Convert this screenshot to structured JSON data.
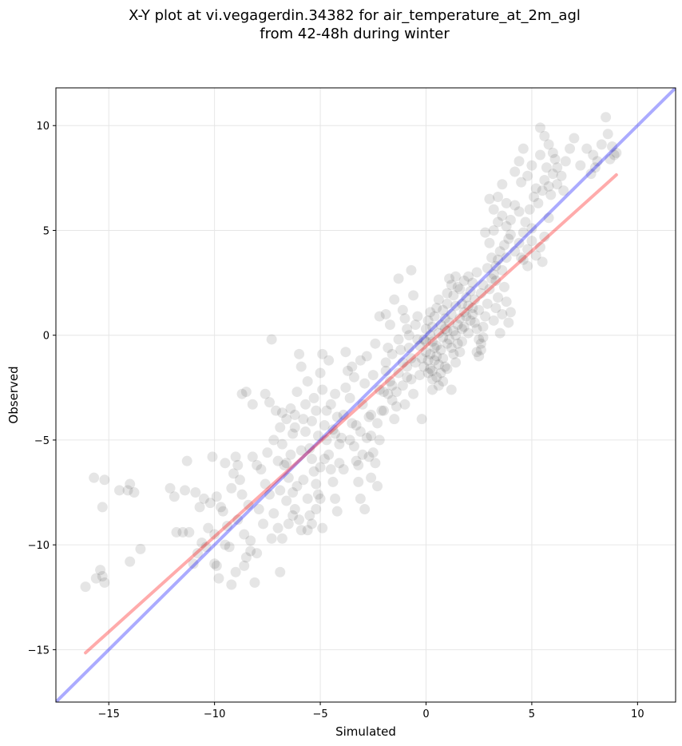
{
  "chart_data": {
    "type": "scatter",
    "title_line1": "X-Y plot at vi.vegagerdin.34382 for air_temperature_at_2m_agl",
    "title_line2": "from 42-48h during winter",
    "xlabel": "Simulated",
    "ylabel": "Observed",
    "xlim": [
      -17.5,
      11.8
    ],
    "ylim": [
      -17.5,
      11.8
    ],
    "xticks": [
      -15,
      -10,
      -5,
      0,
      5,
      10
    ],
    "yticks": [
      -15,
      -10,
      -5,
      0,
      5,
      10
    ],
    "xtick_labels": [
      "−15",
      "−10",
      "−5",
      "0",
      "5",
      "10"
    ],
    "ytick_labels": [
      "−15",
      "−10",
      "−5",
      "0",
      "5",
      "10"
    ],
    "grid": true,
    "colors": {
      "points": "#000000",
      "identity_line": "#0000ff",
      "fit_line": "#ff0000",
      "grid": "#e6e6e6"
    },
    "identity_line": {
      "x": [
        -17.5,
        11.8
      ],
      "y": [
        -17.5,
        11.8
      ]
    },
    "regression_line": {
      "x": [
        -16.1,
        9.0
      ],
      "y": [
        -15.15,
        7.65
      ]
    },
    "points": [
      [
        -16.1,
        -12.0
      ],
      [
        -15.6,
        -11.6
      ],
      [
        -15.4,
        -11.2
      ],
      [
        -15.3,
        -11.5
      ],
      [
        -15.2,
        -11.8
      ],
      [
        -15.7,
        -6.8
      ],
      [
        -15.2,
        -6.9
      ],
      [
        -15.3,
        -8.2
      ],
      [
        -14.5,
        -7.4
      ],
      [
        -14.1,
        -7.4
      ],
      [
        -14.0,
        -7.1
      ],
      [
        -13.8,
        -7.5
      ],
      [
        -14.0,
        -10.8
      ],
      [
        -13.5,
        -10.2
      ],
      [
        -12.1,
        -7.3
      ],
      [
        -11.9,
        -7.7
      ],
      [
        -11.8,
        -9.4
      ],
      [
        -11.5,
        -9.4
      ],
      [
        -11.4,
        -7.4
      ],
      [
        -11.3,
        -6.0
      ],
      [
        -11.2,
        -9.4
      ],
      [
        -11.0,
        -10.9
      ],
      [
        -10.8,
        -10.4
      ],
      [
        -10.6,
        -9.9
      ],
      [
        -10.3,
        -9.2
      ],
      [
        -10.1,
        -5.8
      ],
      [
        -10.0,
        -9.5
      ],
      [
        -9.9,
        -7.7
      ],
      [
        -9.7,
        -8.2
      ],
      [
        -9.5,
        -10.0
      ],
      [
        -9.3,
        -10.1
      ],
      [
        -9.2,
        -11.9
      ],
      [
        -9.0,
        -11.3
      ],
      [
        -9.8,
        -11.6
      ],
      [
        -10.0,
        -10.9
      ],
      [
        -10.5,
        -7.8
      ],
      [
        -10.7,
        -8.2
      ],
      [
        -10.9,
        -7.5
      ],
      [
        -9.0,
        -5.8
      ],
      [
        -8.9,
        -6.2
      ],
      [
        -8.7,
        -7.6
      ],
      [
        -8.6,
        -9.5
      ],
      [
        -8.5,
        -10.6
      ],
      [
        -8.3,
        -9.8
      ],
      [
        -8.1,
        -11.8
      ],
      [
        -8.0,
        -10.4
      ],
      [
        -8.7,
        -2.8
      ],
      [
        -8.5,
        -2.7
      ],
      [
        -8.2,
        -3.3
      ],
      [
        -8.0,
        -6.2
      ],
      [
        -8.2,
        -5.8
      ],
      [
        -7.8,
        -6.4
      ],
      [
        -7.6,
        -7.1
      ],
      [
        -7.4,
        -7.6
      ],
      [
        -7.2,
        -8.5
      ],
      [
        -7.0,
        -9.2
      ],
      [
        -6.9,
        -11.3
      ],
      [
        -6.8,
        -9.7
      ],
      [
        -6.5,
        -9.0
      ],
      [
        -7.6,
        -2.8
      ],
      [
        -7.4,
        -3.2
      ],
      [
        -7.3,
        -0.2
      ],
      [
        -7.1,
        -3.6
      ],
      [
        -6.9,
        -4.4
      ],
      [
        -6.8,
        -5.2
      ],
      [
        -6.6,
        -6.1
      ],
      [
        -6.5,
        -6.8
      ],
      [
        -6.3,
        -7.5
      ],
      [
        -6.2,
        -8.3
      ],
      [
        -6.0,
        -8.8
      ],
      [
        -5.9,
        -9.3
      ],
      [
        -5.6,
        -9.3
      ],
      [
        -5.4,
        -9.0
      ],
      [
        -5.2,
        -8.3
      ],
      [
        -5.0,
        -7.8
      ],
      [
        -4.9,
        -9.2
      ],
      [
        -6.4,
        -3.5
      ],
      [
        -6.2,
        -3.8
      ],
      [
        -6.1,
        -2.7
      ],
      [
        -6.0,
        -0.9
      ],
      [
        -5.9,
        -1.5
      ],
      [
        -5.8,
        -4.0
      ],
      [
        -5.7,
        -4.6
      ],
      [
        -5.5,
        -5.4
      ],
      [
        -5.4,
        -5.9
      ],
      [
        -5.3,
        -6.5
      ],
      [
        -5.2,
        -7.1
      ],
      [
        -5.1,
        -7.6
      ],
      [
        -5.6,
        -2.2
      ],
      [
        -5.3,
        -3.0
      ],
      [
        -5.2,
        -3.6
      ],
      [
        -5.0,
        -1.8
      ],
      [
        -4.9,
        -2.6
      ],
      [
        -4.8,
        -4.3
      ],
      [
        -4.7,
        -5.0
      ],
      [
        -4.6,
        -5.7
      ],
      [
        -4.5,
        -6.4
      ],
      [
        -4.4,
        -7.0
      ],
      [
        -4.3,
        -7.8
      ],
      [
        -4.2,
        -8.4
      ],
      [
        -4.1,
        -6.1
      ],
      [
        -4.0,
        -4.9
      ],
      [
        -3.9,
        -3.8
      ],
      [
        -3.8,
        -2.5
      ],
      [
        -3.7,
        -1.7
      ],
      [
        -3.6,
        -3.0
      ],
      [
        -3.5,
        -4.2
      ],
      [
        -3.4,
        -5.3
      ],
      [
        -3.3,
        -6.0
      ],
      [
        -3.2,
        -7.0
      ],
      [
        -3.1,
        -4.6
      ],
      [
        -3.0,
        -3.3
      ],
      [
        -2.9,
        -2.3
      ],
      [
        -2.8,
        -1.0
      ],
      [
        -2.7,
        -3.9
      ],
      [
        -2.6,
        -4.8
      ],
      [
        -2.5,
        -5.6
      ],
      [
        -2.4,
        -6.1
      ],
      [
        -2.3,
        -7.2
      ],
      [
        -2.2,
        -5.0
      ],
      [
        -2.1,
        -3.6
      ],
      [
        -2.0,
        -2.7
      ],
      [
        -1.9,
        -1.3
      ],
      [
        -1.8,
        -0.6
      ],
      [
        -3.2,
        -6.2
      ],
      [
        -3.1,
        -7.8
      ],
      [
        -2.9,
        -8.3
      ],
      [
        -2.7,
        -5.8
      ],
      [
        -2.6,
        -6.8
      ],
      [
        -4.5,
        -3.3
      ],
      [
        -4.3,
        -2.8
      ],
      [
        -4.2,
        -3.9
      ],
      [
        -1.7,
        -2.2
      ],
      [
        -1.6,
        -3.1
      ],
      [
        -1.5,
        -4.0
      ],
      [
        -1.4,
        -2.7
      ],
      [
        -1.3,
        -1.8
      ],
      [
        -1.2,
        -0.7
      ],
      [
        -1.1,
        -2.4
      ],
      [
        -1.0,
        -3.3
      ],
      [
        -0.9,
        -1.5
      ],
      [
        -0.8,
        -0.6
      ],
      [
        -0.7,
        -2.1
      ],
      [
        -0.6,
        -2.8
      ],
      [
        -0.5,
        -1.3
      ],
      [
        -0.4,
        -0.2
      ],
      [
        -0.3,
        -1.9
      ],
      [
        -0.2,
        -4.0
      ],
      [
        -1.9,
        1.0
      ],
      [
        -1.7,
        0.5
      ],
      [
        -1.5,
        1.7
      ],
      [
        -1.3,
        2.7
      ],
      [
        -1.1,
        1.2
      ],
      [
        -0.9,
        0.3
      ],
      [
        -0.7,
        3.1
      ],
      [
        -0.6,
        1.9
      ],
      [
        -0.5,
        0.5
      ],
      [
        -0.3,
        -0.5
      ],
      [
        -0.2,
        -1.1
      ],
      [
        -0.1,
        -1.5
      ],
      [
        0.0,
        -0.3
      ],
      [
        0.1,
        -1.8
      ],
      [
        0.2,
        -0.9
      ],
      [
        0.3,
        -2.6
      ],
      [
        0.0,
        -0.8
      ],
      [
        0.1,
        -1.2
      ],
      [
        0.2,
        -1.6
      ],
      [
        0.3,
        -2.1
      ],
      [
        0.4,
        -0.6
      ],
      [
        0.5,
        -1.0
      ],
      [
        0.6,
        -1.4
      ],
      [
        0.7,
        -1.8
      ],
      [
        -0.1,
        -0.2
      ],
      [
        0.0,
        0.3
      ],
      [
        0.1,
        0.7
      ],
      [
        0.2,
        1.1
      ],
      [
        0.3,
        0.4
      ],
      [
        0.4,
        0.9
      ],
      [
        0.5,
        1.3
      ],
      [
        0.6,
        1.7
      ],
      [
        0.2,
        0.0
      ],
      [
        0.3,
        -0.3
      ],
      [
        0.5,
        -0.5
      ],
      [
        0.6,
        0.1
      ],
      [
        0.7,
        0.5
      ],
      [
        0.8,
        -0.1
      ],
      [
        0.9,
        0.8
      ],
      [
        1.0,
        0.2
      ],
      [
        0.4,
        -1.2
      ],
      [
        0.5,
        -2.0
      ],
      [
        0.6,
        -2.4
      ],
      [
        0.7,
        -0.7
      ],
      [
        0.8,
        -1.1
      ],
      [
        0.9,
        -1.5
      ],
      [
        1.0,
        -0.4
      ],
      [
        0.3,
        -1.7
      ],
      [
        0.8,
        1.2
      ],
      [
        0.9,
        0.3
      ],
      [
        1.0,
        1.5
      ],
      [
        1.1,
        0.6
      ],
      [
        1.2,
        1.0
      ],
      [
        1.3,
        0.2
      ],
      [
        1.4,
        1.4
      ],
      [
        1.5,
        0.5
      ],
      [
        1.1,
        -0.2
      ],
      [
        1.2,
        -0.6
      ],
      [
        1.3,
        -0.9
      ],
      [
        1.4,
        0.0
      ],
      [
        1.5,
        -0.4
      ],
      [
        1.6,
        0.8
      ],
      [
        1.7,
        0.3
      ],
      [
        1.8,
        1.1
      ],
      [
        1.6,
        -0.8
      ],
      [
        1.7,
        -0.3
      ],
      [
        1.8,
        0.4
      ],
      [
        1.9,
        0.9
      ],
      [
        2.0,
        0.1
      ],
      [
        2.1,
        0.7
      ],
      [
        2.2,
        1.3
      ],
      [
        2.3,
        0.6
      ],
      [
        1.9,
        1.8
      ],
      [
        2.0,
        1.4
      ],
      [
        2.1,
        2.1
      ],
      [
        2.2,
        1.0
      ],
      [
        2.3,
        1.7
      ],
      [
        2.4,
        0.3
      ],
      [
        2.5,
        1.2
      ],
      [
        2.6,
        2.0
      ],
      [
        1.0,
        2.0
      ],
      [
        1.2,
        2.4
      ],
      [
        1.4,
        2.8
      ],
      [
        1.6,
        2.2
      ],
      [
        1.8,
        2.6
      ],
      [
        2.0,
        2.8
      ],
      [
        2.2,
        2.5
      ],
      [
        2.4,
        3.0
      ],
      [
        2.5,
        -0.2
      ],
      [
        2.6,
        -0.4
      ],
      [
        2.7,
        0.4
      ],
      [
        2.8,
        0.9
      ],
      [
        2.9,
        1.5
      ],
      [
        3.0,
        2.2
      ],
      [
        3.1,
        2.7
      ],
      [
        3.2,
        0.7
      ],
      [
        0.8,
        -2.2
      ],
      [
        1.0,
        -1.6
      ],
      [
        1.2,
        -2.6
      ],
      [
        1.4,
        -1.3
      ],
      [
        2.4,
        -0.8
      ],
      [
        2.5,
        -1.0
      ],
      [
        2.6,
        -0.7
      ],
      [
        2.7,
        -0.1
      ],
      [
        3.3,
        1.3
      ],
      [
        3.4,
        1.8
      ],
      [
        3.5,
        0.1
      ],
      [
        3.6,
        1.0
      ],
      [
        3.7,
        2.3
      ],
      [
        3.8,
        1.6
      ],
      [
        3.9,
        0.6
      ],
      [
        4.0,
        1.1
      ],
      [
        3.2,
        2.9
      ],
      [
        3.3,
        3.3
      ],
      [
        3.4,
        3.6
      ],
      [
        3.5,
        4.0
      ],
      [
        3.6,
        3.1
      ],
      [
        3.7,
        4.3
      ],
      [
        3.8,
        3.7
      ],
      [
        3.9,
        4.6
      ],
      [
        2.8,
        4.9
      ],
      [
        3.0,
        4.4
      ],
      [
        3.2,
        5.0
      ],
      [
        3.4,
        5.4
      ],
      [
        3.6,
        5.7
      ],
      [
        3.8,
        5.2
      ],
      [
        4.0,
        4.8
      ],
      [
        4.2,
        4.0
      ],
      [
        3.0,
        6.5
      ],
      [
        3.2,
        6.0
      ],
      [
        3.4,
        6.6
      ],
      [
        3.6,
        7.2
      ],
      [
        3.8,
        6.3
      ],
      [
        4.0,
        5.5
      ],
      [
        4.2,
        6.2
      ],
      [
        4.4,
        5.9
      ],
      [
        4.4,
        4.4
      ],
      [
        4.5,
        3.7
      ],
      [
        4.6,
        4.9
      ],
      [
        4.7,
        5.4
      ],
      [
        4.8,
        4.1
      ],
      [
        4.9,
        6.0
      ],
      [
        5.0,
        5.1
      ],
      [
        5.1,
        6.6
      ],
      [
        4.2,
        7.8
      ],
      [
        4.4,
        8.3
      ],
      [
        4.5,
        7.3
      ],
      [
        4.6,
        8.9
      ],
      [
        4.8,
        7.6
      ],
      [
        5.0,
        8.1
      ],
      [
        5.2,
        7.0
      ],
      [
        5.4,
        8.6
      ],
      [
        4.6,
        3.6
      ],
      [
        4.8,
        3.3
      ],
      [
        5.0,
        4.5
      ],
      [
        5.2,
        3.8
      ],
      [
        5.4,
        4.2
      ],
      [
        5.5,
        3.5
      ],
      [
        5.6,
        4.7
      ],
      [
        5.8,
        5.6
      ],
      [
        5.3,
        6.3
      ],
      [
        5.5,
        6.9
      ],
      [
        5.6,
        7.4
      ],
      [
        5.7,
        8.0
      ],
      [
        5.8,
        7.1
      ],
      [
        5.9,
        6.7
      ],
      [
        6.0,
        7.7
      ],
      [
        6.1,
        8.4
      ],
      [
        5.4,
        9.9
      ],
      [
        5.6,
        9.5
      ],
      [
        5.8,
        9.1
      ],
      [
        6.0,
        8.7
      ],
      [
        6.2,
        8.0
      ],
      [
        6.4,
        7.6
      ],
      [
        6.6,
        8.3
      ],
      [
        6.8,
        8.9
      ],
      [
        7.0,
        9.4
      ],
      [
        7.3,
        8.1
      ],
      [
        7.6,
        8.9
      ],
      [
        7.9,
        8.6
      ],
      [
        8.1,
        8.3
      ],
      [
        8.3,
        9.1
      ],
      [
        8.5,
        10.4
      ],
      [
        8.6,
        9.6
      ],
      [
        8.8,
        9.0
      ],
      [
        8.9,
        8.6
      ],
      [
        9.0,
        8.7
      ],
      [
        8.7,
        8.4
      ],
      [
        8.0,
        8.0
      ],
      [
        7.8,
        7.7
      ],
      [
        6.5,
        6.9
      ],
      [
        6.2,
        7.2
      ],
      [
        -3.8,
        -0.8
      ],
      [
        -4.6,
        -1.2
      ],
      [
        -4.9,
        -0.9
      ],
      [
        -3.5,
        -1.5
      ],
      [
        -2.4,
        -0.4
      ],
      [
        -1.9,
        -1.7
      ],
      [
        -2.2,
        0.9
      ],
      [
        -1.6,
        -0.9
      ],
      [
        -9.5,
        -6.1
      ],
      [
        -9.1,
        -6.6
      ],
      [
        -8.8,
        -6.9
      ],
      [
        -8.4,
        -8.1
      ],
      [
        -7.9,
        -8.3
      ],
      [
        -7.7,
        -9.0
      ],
      [
        -7.3,
        -9.7
      ],
      [
        -8.9,
        -8.8
      ],
      [
        -6.7,
        -6.2
      ],
      [
        -6.4,
        -5.7
      ],
      [
        -6.3,
        -4.7
      ],
      [
        -5.8,
        -6.9
      ],
      [
        -5.6,
        -7.8
      ],
      [
        -5.5,
        -8.6
      ],
      [
        -5.0,
        -6.3
      ],
      [
        -4.8,
        -5.9
      ],
      [
        -4.4,
        -4.5
      ],
      [
        -4.1,
        -5.2
      ],
      [
        -3.9,
        -6.4
      ],
      [
        -3.6,
        -5.0
      ],
      [
        -3.3,
        -4.3
      ],
      [
        -3.0,
        -5.7
      ],
      [
        -2.8,
        -4.9
      ],
      [
        -2.6,
        -3.8
      ],
      [
        -2.3,
        -4.2
      ],
      [
        -2.0,
        -3.6
      ],
      [
        -1.8,
        -2.8
      ],
      [
        -1.6,
        -2.4
      ],
      [
        -1.4,
        -3.4
      ],
      [
        -1.1,
        -1.3
      ],
      [
        -0.9,
        -2.0
      ],
      [
        -0.7,
        -1.1
      ],
      [
        -6.8,
        -3.7
      ],
      [
        -6.6,
        -4.0
      ],
      [
        -6.2,
        -4.4
      ],
      [
        -5.7,
        -3.3
      ],
      [
        -5.4,
        -4.1
      ],
      [
        -5.1,
        -4.8
      ],
      [
        -4.7,
        -3.6
      ],
      [
        -4.3,
        -4.7
      ],
      [
        -7.5,
        -5.6
      ],
      [
        -7.2,
        -5.0
      ],
      [
        -7.0,
        -6.0
      ],
      [
        -6.9,
        -7.4
      ],
      [
        -6.6,
        -7.9
      ],
      [
        -6.3,
        -8.6
      ],
      [
        -6.1,
        -7.2
      ],
      [
        -5.9,
        -5.5
      ],
      [
        -9.4,
        -9.1
      ],
      [
        -9.6,
        -8.4
      ],
      [
        -10.2,
        -8.0
      ],
      [
        -10.4,
        -10.1
      ],
      [
        -9.9,
        -11.0
      ],
      [
        -8.6,
        -11.0
      ],
      [
        -8.3,
        -10.3
      ],
      [
        -9.2,
        -7.3
      ],
      [
        -3.4,
        -2.0
      ],
      [
        -3.1,
        -1.2
      ],
      [
        -2.5,
        -1.9
      ],
      [
        -2.2,
        -2.6
      ],
      [
        -1.3,
        -0.2
      ],
      [
        -1.0,
        0.8
      ],
      [
        -0.8,
        0.0
      ],
      [
        -0.4,
        0.9
      ],
      [
        1.1,
        2.7
      ],
      [
        1.3,
        1.9
      ],
      [
        1.5,
        2.3
      ],
      [
        1.7,
        1.5
      ],
      [
        2.7,
        2.4
      ],
      [
        2.9,
        3.2
      ],
      [
        3.1,
        3.7
      ],
      [
        3.3,
        2.6
      ]
    ]
  }
}
